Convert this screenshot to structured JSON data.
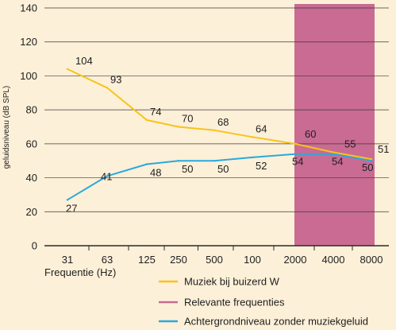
{
  "chart_data": {
    "type": "line",
    "x": [
      "31",
      "63",
      "125",
      "250",
      "500",
      "100",
      "2000",
      "4000",
      "8000"
    ],
    "xlabel": "Frequentie (Hz)",
    "ylabel": "geluidsniveau (dB SPL)",
    "ylim": [
      0,
      140
    ],
    "yticks": [
      0,
      20,
      40,
      60,
      80,
      100,
      120,
      140
    ],
    "grid": "horizontal",
    "legend_position": "bottom-right",
    "highlight_band": {
      "name": "Relevante frequenties",
      "from": "2000",
      "to": "8000",
      "color": "#c96b93"
    },
    "series": [
      {
        "name": "Muziek bij buizerd W",
        "color": "#f7c31c",
        "values": [
          104,
          93,
          74,
          70,
          68,
          64,
          60,
          55,
          51
        ],
        "labels": [
          "104",
          "93",
          "74",
          "70",
          "68",
          "64",
          "60",
          "55",
          "51"
        ]
      },
      {
        "name": "Achtergrondniveau zonder muziekgeluid",
        "color": "#2aa9dc",
        "values": [
          27,
          41,
          48,
          50,
          50,
          52,
          54,
          54,
          50
        ],
        "labels": [
          "27",
          "41",
          "48",
          "50",
          "50",
          "52",
          "54",
          "54",
          "50"
        ]
      }
    ]
  }
}
